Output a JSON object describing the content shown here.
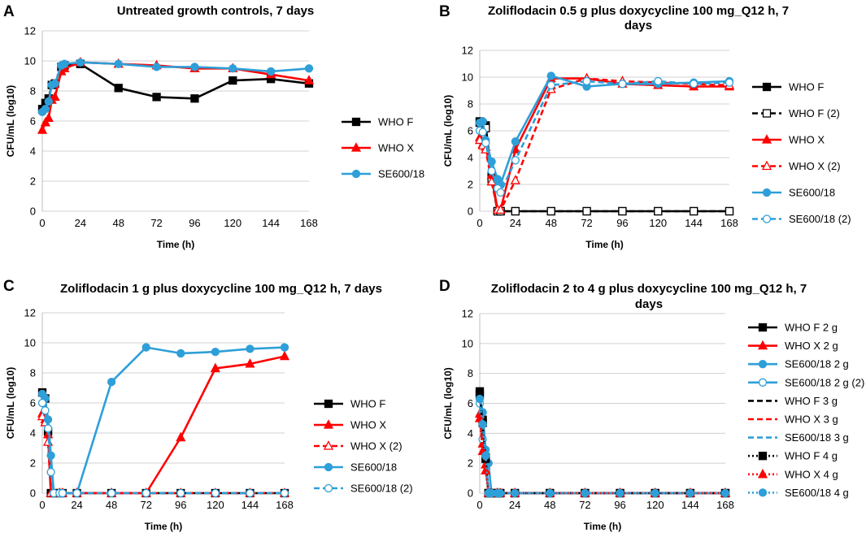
{
  "colors": {
    "black": "#000000",
    "red": "#ff0000",
    "blue": "#2e9fd8",
    "grid": "#d0d0d0"
  },
  "chart_data": [
    {
      "letter": "A",
      "type": "line",
      "title": [
        "Untreated growth controls, 7 days"
      ],
      "xlabel": "Time (h)",
      "ylabel": "CFU/mL (log10)",
      "xlim": [
        0,
        168
      ],
      "ylim": [
        0,
        12
      ],
      "xticks": [
        0,
        24,
        48,
        72,
        96,
        120,
        144,
        168
      ],
      "yticks": [
        0,
        2,
        4,
        6,
        8,
        10,
        12
      ],
      "legend_position": "right",
      "series": [
        {
          "name": "WHO F",
          "color": "black",
          "marker": "square",
          "filled": true,
          "dash": "solid",
          "x": [
            0,
            2,
            4,
            6,
            8,
            12,
            14,
            24,
            48,
            72,
            96,
            120,
            144,
            168
          ],
          "y": [
            6.8,
            7.2,
            7.5,
            8.4,
            8.5,
            9.6,
            9.7,
            9.8,
            8.2,
            7.6,
            7.5,
            8.7,
            8.8,
            8.5
          ]
        },
        {
          "name": "WHO X",
          "color": "red",
          "marker": "triangle",
          "filled": true,
          "dash": "solid",
          "x": [
            0,
            2,
            4,
            6,
            8,
            12,
            14,
            24,
            48,
            72,
            96,
            120,
            144,
            168
          ],
          "y": [
            5.4,
            5.9,
            6.2,
            7.4,
            7.6,
            9.3,
            9.5,
            9.9,
            9.8,
            9.7,
            9.5,
            9.5,
            9.1,
            8.7
          ]
        },
        {
          "name": "SE600/18",
          "color": "blue",
          "marker": "circle",
          "filled": true,
          "dash": "solid",
          "x": [
            0,
            2,
            4,
            6,
            8,
            12,
            14,
            24,
            48,
            72,
            96,
            120,
            144,
            168
          ],
          "y": [
            6.6,
            6.8,
            7.3,
            8.4,
            8.5,
            9.7,
            9.8,
            9.9,
            9.8,
            9.6,
            9.6,
            9.5,
            9.3,
            9.5
          ]
        }
      ]
    },
    {
      "letter": "B",
      "type": "line",
      "title": [
        "Zoliflodacin 0.5 g plus doxycycline 100 mg_Q12 h, 7",
        "days"
      ],
      "xlabel": "Time (h)",
      "ylabel": "CFU/mL (log10)",
      "xlim": [
        0,
        168
      ],
      "ylim": [
        0,
        12
      ],
      "xticks": [
        0,
        24,
        48,
        72,
        96,
        120,
        144,
        168
      ],
      "yticks": [
        0,
        2,
        4,
        6,
        8,
        10,
        12
      ],
      "legend_position": "right",
      "series": [
        {
          "name": "WHO F",
          "color": "black",
          "marker": "square",
          "filled": true,
          "dash": "solid",
          "x": [
            0,
            2,
            4,
            8,
            12,
            14,
            24,
            48,
            72,
            96,
            120,
            144,
            168
          ],
          "y": [
            6.7,
            6.5,
            6.4,
            2.6,
            0,
            0,
            0,
            0,
            0,
            0,
            0,
            0,
            0
          ]
        },
        {
          "name": "WHO F (2)",
          "color": "black",
          "marker": "square",
          "filled": false,
          "dash": "dash",
          "x": [
            0,
            2,
            4,
            8,
            12,
            14,
            24,
            48,
            72,
            96,
            120,
            144,
            168
          ],
          "y": [
            6.6,
            6.4,
            6.2,
            2.4,
            0,
            0,
            0,
            0,
            0,
            0,
            0,
            0,
            0
          ]
        },
        {
          "name": "WHO X",
          "color": "red",
          "marker": "triangle",
          "filled": true,
          "dash": "solid",
          "x": [
            0,
            2,
            4,
            8,
            12,
            14,
            24,
            48,
            72,
            96,
            120,
            144,
            168
          ],
          "y": [
            5.5,
            5.0,
            4.8,
            2.7,
            0.1,
            0.1,
            4.6,
            9.9,
            9.9,
            9.5,
            9.4,
            9.3,
            9.3
          ]
        },
        {
          "name": "WHO X (2)",
          "color": "red",
          "marker": "triangle",
          "filled": false,
          "dash": "dash",
          "x": [
            0,
            2,
            4,
            8,
            12,
            14,
            24,
            48,
            72,
            96,
            120,
            144,
            168
          ],
          "y": [
            5.3,
            4.9,
            4.6,
            2.2,
            0.1,
            0.1,
            2.3,
            9.1,
            9.9,
            9.7,
            9.6,
            9.5,
            9.4
          ]
        },
        {
          "name": "SE600/18",
          "color": "blue",
          "marker": "circle",
          "filled": true,
          "dash": "solid",
          "x": [
            0,
            2,
            4,
            8,
            12,
            14,
            24,
            48,
            72,
            96,
            120,
            144,
            168
          ],
          "y": [
            6.6,
            6.7,
            5.3,
            3.7,
            2.4,
            2.0,
            5.2,
            10.1,
            9.3,
            9.5,
            9.5,
            9.6,
            9.7
          ]
        },
        {
          "name": "SE600/18 (2)",
          "color": "blue",
          "marker": "circle",
          "filled": false,
          "dash": "dash",
          "x": [
            0,
            2,
            4,
            8,
            12,
            14,
            24,
            48,
            72,
            96,
            120,
            144,
            168
          ],
          "y": [
            6.0,
            5.9,
            5.1,
            3.0,
            1.7,
            1.4,
            3.8,
            9.4,
            9.7,
            9.5,
            9.7,
            9.5,
            9.6
          ]
        }
      ]
    },
    {
      "letter": "C",
      "type": "line",
      "title": [
        "Zoliflodacin 1 g plus doxycycline 100 mg_Q12 h, 7 days"
      ],
      "xlabel": "Time (h)",
      "ylabel": "CFU/mL (log10)",
      "xlim": [
        0,
        168
      ],
      "ylim": [
        0,
        12
      ],
      "xticks": [
        0,
        24,
        48,
        72,
        96,
        120,
        144,
        168
      ],
      "yticks": [
        0,
        2,
        4,
        6,
        8,
        10,
        12
      ],
      "legend_position": "right",
      "series": [
        {
          "name": "WHO F",
          "color": "black",
          "marker": "square",
          "filled": true,
          "dash": "solid",
          "x": [
            0,
            2,
            4,
            6,
            8,
            12,
            14,
            24,
            48,
            72,
            96,
            120,
            144,
            168
          ],
          "y": [
            6.7,
            6.3,
            4.1,
            0,
            0,
            0,
            0,
            0,
            0,
            0,
            0,
            0,
            0,
            0
          ]
        },
        {
          "name": "WHO X",
          "color": "red",
          "marker": "triangle",
          "filled": true,
          "dash": "solid",
          "x": [
            0,
            2,
            4,
            6,
            8,
            12,
            14,
            24,
            48,
            72,
            96,
            120,
            144,
            168
          ],
          "y": [
            5.3,
            4.9,
            3.9,
            0,
            0,
            0,
            0,
            0,
            0,
            0,
            3.7,
            8.3,
            8.6,
            9.1
          ]
        },
        {
          "name": "WHO X (2)",
          "color": "red",
          "marker": "triangle",
          "filled": false,
          "dash": "dash",
          "x": [
            0,
            2,
            4,
            6,
            8,
            12,
            14,
            24,
            48,
            72,
            96,
            120,
            144,
            168
          ],
          "y": [
            5.1,
            4.7,
            3.4,
            0,
            0,
            0,
            0,
            0,
            0,
            0,
            0,
            0,
            0,
            0
          ]
        },
        {
          "name": "SE600/18",
          "color": "blue",
          "marker": "circle",
          "filled": true,
          "dash": "solid",
          "x": [
            0,
            2,
            4,
            6,
            8,
            12,
            14,
            24,
            48,
            72,
            96,
            120,
            144,
            168
          ],
          "y": [
            6.6,
            6.3,
            4.9,
            2.5,
            0,
            0,
            0,
            0,
            7.4,
            9.7,
            9.3,
            9.4,
            9.6,
            9.7
          ]
        },
        {
          "name": "SE600/18 (2)",
          "color": "blue",
          "marker": "circle",
          "filled": false,
          "dash": "dash",
          "x": [
            0,
            2,
            4,
            6,
            8,
            12,
            14,
            24,
            48,
            72,
            96,
            120,
            144,
            168
          ],
          "y": [
            6.0,
            5.5,
            4.3,
            1.4,
            0,
            0,
            0,
            0,
            0,
            0,
            0,
            0,
            0,
            0
          ]
        }
      ]
    },
    {
      "letter": "D",
      "type": "line",
      "title": [
        "Zoliflodacin 2 to 4 g plus doxycycline 100 mg_Q12 h, 7",
        "days"
      ],
      "xlabel": "Time (h)",
      "ylabel": "CFU/mL (log10)",
      "xlim": [
        0,
        168
      ],
      "ylim": [
        0,
        12
      ],
      "xticks": [
        0,
        24,
        48,
        72,
        96,
        120,
        144,
        168
      ],
      "yticks": [
        0,
        2,
        4,
        6,
        8,
        10,
        12
      ],
      "legend_position": "right",
      "series": [
        {
          "name": "WHO F 2 g",
          "color": "black",
          "marker": "square",
          "filled": true,
          "dash": "solid",
          "x": [
            0,
            2,
            4,
            6,
            8,
            12,
            14,
            24,
            48,
            72,
            96,
            120,
            144,
            168
          ],
          "y": [
            6.8,
            4.9,
            2.4,
            0,
            0,
            0,
            0,
            0,
            0,
            0,
            0,
            0,
            0,
            0
          ]
        },
        {
          "name": "WHO X 2 g",
          "color": "red",
          "marker": "triangle",
          "filled": true,
          "dash": "solid",
          "x": [
            0,
            2,
            4,
            6,
            8,
            12,
            14,
            24,
            48,
            72,
            96,
            120,
            144,
            168
          ],
          "y": [
            5.3,
            3.3,
            1.9,
            0,
            0,
            0,
            0,
            0,
            0,
            0,
            0,
            0,
            0,
            0
          ]
        },
        {
          "name": "SE600/18 2 g",
          "color": "blue",
          "marker": "circle",
          "filled": true,
          "dash": "solid",
          "x": [
            0,
            2,
            4,
            6,
            8,
            12,
            14,
            24,
            48,
            72,
            96,
            120,
            144,
            168
          ],
          "y": [
            6.6,
            5.4,
            2.9,
            2.0,
            0,
            0,
            0,
            0,
            0,
            0,
            0,
            0,
            0,
            0
          ]
        },
        {
          "name": "SE600/18 2 g (2)",
          "color": "blue",
          "marker": "circle",
          "filled": false,
          "dash": "solid",
          "x": [
            0,
            2,
            4,
            6,
            8,
            12,
            14,
            24,
            48,
            72,
            96,
            120,
            144,
            168
          ],
          "y": [
            6.0,
            3.6,
            2.2,
            0,
            0,
            0,
            0,
            0,
            0,
            0,
            0,
            0,
            0,
            0
          ]
        },
        {
          "name": "WHO F 3 g",
          "color": "black",
          "marker": "none",
          "filled": false,
          "dash": "dash",
          "x": [
            0,
            2,
            4,
            6,
            8,
            12,
            14,
            24,
            48,
            72,
            96,
            120,
            144,
            168
          ],
          "y": [
            6.7,
            4.5,
            2.2,
            0,
            0,
            0,
            0,
            0,
            0,
            0,
            0,
            0,
            0,
            0
          ]
        },
        {
          "name": "WHO X 3 g",
          "color": "red",
          "marker": "none",
          "filled": false,
          "dash": "dash",
          "x": [
            0,
            2,
            4,
            6,
            8,
            12,
            14,
            24,
            48,
            72,
            96,
            120,
            144,
            168
          ],
          "y": [
            5.2,
            3.0,
            1.7,
            0,
            0,
            0,
            0,
            0,
            0,
            0,
            0,
            0,
            0,
            0
          ]
        },
        {
          "name": "SE600/18 3 g",
          "color": "blue",
          "marker": "none",
          "filled": false,
          "dash": "dash",
          "x": [
            0,
            2,
            4,
            6,
            8,
            12,
            14,
            24,
            48,
            72,
            96,
            120,
            144,
            168
          ],
          "y": [
            6.4,
            4.9,
            2.7,
            0,
            0,
            0,
            0,
            0,
            0,
            0,
            0,
            0,
            0,
            0
          ]
        },
        {
          "name": "WHO F 4 g",
          "color": "black",
          "marker": "square",
          "filled": true,
          "dash": "dot",
          "x": [
            0,
            2,
            4,
            6,
            8,
            12,
            14,
            24,
            48,
            72,
            96,
            120,
            144,
            168
          ],
          "y": [
            6.6,
            4.7,
            2.3,
            0,
            0,
            0,
            0,
            0,
            0,
            0,
            0,
            0,
            0,
            0
          ]
        },
        {
          "name": "WHO X 4 g",
          "color": "red",
          "marker": "triangle",
          "filled": true,
          "dash": "dot",
          "x": [
            0,
            2,
            4,
            6,
            8,
            12,
            14,
            24,
            48,
            72,
            96,
            120,
            144,
            168
          ],
          "y": [
            5.0,
            2.8,
            1.5,
            0,
            0,
            0,
            0,
            0,
            0,
            0,
            0,
            0,
            0,
            0
          ]
        },
        {
          "name": "SE600/18 4 g",
          "color": "blue",
          "marker": "circle",
          "filled": true,
          "dash": "dot",
          "x": [
            0,
            2,
            4,
            6,
            8,
            12,
            14,
            24,
            48,
            72,
            96,
            120,
            144,
            168
          ],
          "y": [
            6.3,
            4.6,
            2.5,
            0,
            0,
            0,
            0,
            0,
            0,
            0,
            0,
            0,
            0,
            0
          ]
        }
      ]
    }
  ]
}
